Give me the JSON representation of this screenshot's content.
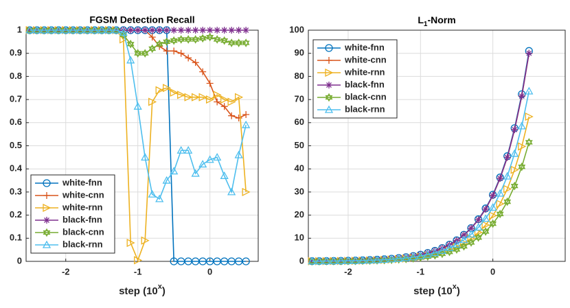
{
  "chart_data": [
    {
      "type": "line",
      "title": "FGSM Detection Recall",
      "xlabel": [
        "step (10",
        "x",
        ")"
      ],
      "x": [
        -2.5,
        -2.4,
        -2.3,
        -2.2,
        -2.1,
        -2.0,
        -1.9,
        -1.8,
        -1.7,
        -1.6,
        -1.5,
        -1.4,
        -1.3,
        -1.2,
        -1.1,
        -1.0,
        -0.9,
        -0.8,
        -0.7,
        -0.6,
        -0.5,
        -0.4,
        -0.3,
        -0.2,
        -0.1,
        0,
        0.1,
        0.2,
        0.3,
        0.4,
        0.5
      ],
      "xlim": [
        -2.55,
        0.67
      ],
      "xticks": [
        -2,
        -1,
        0
      ],
      "ylim": [
        0,
        1
      ],
      "yticks": [
        0,
        0.1,
        0.2,
        0.3,
        0.4,
        0.5,
        0.6,
        0.7,
        0.8,
        0.9,
        1
      ],
      "grid": true,
      "legend": "southwest",
      "series": [
        {
          "name": "white-fnn",
          "color": "#0072BD",
          "marker": "circle",
          "values": [
            1,
            1,
            1,
            1,
            1,
            1,
            1,
            1,
            1,
            1,
            1,
            1,
            1,
            1,
            1,
            1,
            1,
            1,
            1,
            1,
            0,
            0,
            0,
            0,
            0,
            0,
            0,
            0,
            0,
            0,
            0
          ]
        },
        {
          "name": "white-cnn",
          "color": "#D95319",
          "marker": "plus",
          "values": [
            1,
            1,
            1,
            1,
            1,
            1,
            1,
            1,
            1,
            1,
            1,
            1,
            1,
            1,
            1,
            1,
            1,
            0.97,
            0.93,
            0.91,
            0.91,
            0.9,
            0.88,
            0.86,
            0.82,
            0.77,
            0.69,
            0.67,
            0.63,
            0.62,
            0.635
          ]
        },
        {
          "name": "white-rnn",
          "color": "#EDB120",
          "marker": "triangle-right",
          "values": [
            1,
            1,
            1,
            1,
            1,
            1,
            1,
            1,
            1,
            1,
            1,
            1,
            1,
            0.96,
            0.08,
            0.005,
            0.09,
            0.69,
            0.74,
            0.75,
            0.73,
            0.72,
            0.71,
            0.71,
            0.71,
            0.7,
            0.72,
            0.7,
            0.69,
            0.71,
            0.3
          ]
        },
        {
          "name": "black-fnn",
          "color": "#7E2F8E",
          "marker": "star",
          "values": [
            1,
            1,
            1,
            1,
            1,
            1,
            1,
            1,
            1,
            1,
            1,
            1,
            1,
            1,
            1,
            1,
            1,
            1,
            1,
            1,
            1,
            1,
            1,
            1,
            1,
            1,
            1,
            1,
            1,
            1,
            1
          ]
        },
        {
          "name": "black-cnn",
          "color": "#77AC30",
          "marker": "hexagram",
          "values": [
            1,
            1,
            1,
            1,
            1,
            1,
            1,
            1,
            1,
            1,
            1,
            1,
            1,
            0.98,
            0.94,
            0.9,
            0.9,
            0.92,
            0.94,
            0.95,
            0.955,
            0.96,
            0.96,
            0.96,
            0.965,
            0.97,
            0.96,
            0.955,
            0.945,
            0.945,
            0.945
          ]
        },
        {
          "name": "black-rnn",
          "color": "#4DBEEE",
          "marker": "triangle-up",
          "values": [
            1,
            1,
            1,
            1,
            1,
            1,
            1,
            1,
            1,
            1,
            1,
            1,
            1,
            0.99,
            0.87,
            0.67,
            0.45,
            0.29,
            0.27,
            0.35,
            0.39,
            0.48,
            0.48,
            0.38,
            0.42,
            0.44,
            0.45,
            0.37,
            0.3,
            0.46,
            0.59
          ]
        }
      ]
    },
    {
      "type": "line",
      "title": [
        "L",
        "1",
        "-Norm"
      ],
      "xlabel": [
        "step (10",
        "x",
        ")"
      ],
      "x": [
        -2.5,
        -2.4,
        -2.3,
        -2.2,
        -2.1,
        -2.0,
        -1.9,
        -1.8,
        -1.7,
        -1.6,
        -1.5,
        -1.4,
        -1.3,
        -1.2,
        -1.1,
        -1.0,
        -0.9,
        -0.8,
        -0.7,
        -0.6,
        -0.5,
        -0.4,
        -0.3,
        -0.2,
        -0.1,
        0,
        0.1,
        0.2,
        0.3,
        0.4,
        0.5
      ],
      "xlim": [
        -2.55,
        1
      ],
      "xticks": [
        -2,
        -1,
        0
      ],
      "ylim": [
        0,
        100
      ],
      "yticks": [
        0,
        10,
        20,
        30,
        40,
        50,
        60,
        70,
        80,
        90,
        100
      ],
      "grid": true,
      "legend": "northwest",
      "series": [
        {
          "name": "white-fnn",
          "color": "#0072BD",
          "marker": "circle",
          "values": [
            0.09,
            0.11,
            0.14,
            0.18,
            0.23,
            0.29,
            0.36,
            0.46,
            0.58,
            0.72,
            0.91,
            1.15,
            1.44,
            1.82,
            2.29,
            2.88,
            3.63,
            4.55,
            5.76,
            7.23,
            9.1,
            11.5,
            14.4,
            18.2,
            22.9,
            28.8,
            36.3,
            45.5,
            57.6,
            72.3,
            91
          ]
        },
        {
          "name": "white-cnn",
          "color": "#D95319",
          "marker": "plus",
          "values": [
            0.09,
            0.11,
            0.14,
            0.18,
            0.23,
            0.28,
            0.36,
            0.45,
            0.57,
            0.72,
            0.9,
            1.14,
            1.43,
            1.8,
            2.27,
            2.85,
            3.59,
            4.5,
            5.7,
            7.15,
            9.0,
            11.4,
            14.3,
            18.0,
            22.6,
            28.5,
            35.9,
            45.0,
            57.0,
            71.5,
            90
          ]
        },
        {
          "name": "white-rnn",
          "color": "#EDB120",
          "marker": "triangle-right",
          "values": [
            0.06,
            0.08,
            0.1,
            0.12,
            0.16,
            0.2,
            0.25,
            0.31,
            0.4,
            0.5,
            0.63,
            0.79,
            0.99,
            1.25,
            1.57,
            1.98,
            2.49,
            3.13,
            3.96,
            4.97,
            6.26,
            7.88,
            9.92,
            12.5,
            15.7,
            19.8,
            24.9,
            31.3,
            39.6,
            49.7,
            62.6
          ]
        },
        {
          "name": "black-fnn",
          "color": "#7E2F8E",
          "marker": "star",
          "values": [
            0.09,
            0.11,
            0.14,
            0.18,
            0.23,
            0.28,
            0.36,
            0.45,
            0.57,
            0.72,
            0.9,
            1.14,
            1.43,
            1.8,
            2.27,
            2.85,
            3.59,
            4.5,
            5.7,
            7.15,
            9.0,
            11.4,
            14.3,
            18.0,
            22.6,
            28.5,
            35.9,
            45.0,
            57.0,
            71.5,
            90
          ]
        },
        {
          "name": "black-cnn",
          "color": "#77AC30",
          "marker": "hexagram",
          "values": [
            0.05,
            0.06,
            0.08,
            0.1,
            0.13,
            0.16,
            0.21,
            0.26,
            0.33,
            0.41,
            0.52,
            0.65,
            0.82,
            1.03,
            1.29,
            1.63,
            2.05,
            2.58,
            3.26,
            4.09,
            5.15,
            6.49,
            8.17,
            10.3,
            12.9,
            16.3,
            20.5,
            25.8,
            32.6,
            40.9,
            51.5
          ]
        },
        {
          "name": "black-rnn",
          "color": "#4DBEEE",
          "marker": "triangle-up",
          "values": [
            0.07,
            0.09,
            0.12,
            0.15,
            0.19,
            0.23,
            0.29,
            0.37,
            0.47,
            0.58,
            0.74,
            0.93,
            1.17,
            1.47,
            1.85,
            2.33,
            2.94,
            3.68,
            4.66,
            5.85,
            7.36,
            9.27,
            11.7,
            14.7,
            18.5,
            23.3,
            29.4,
            36.8,
            46.6,
            58.5,
            73.6
          ]
        }
      ]
    }
  ]
}
